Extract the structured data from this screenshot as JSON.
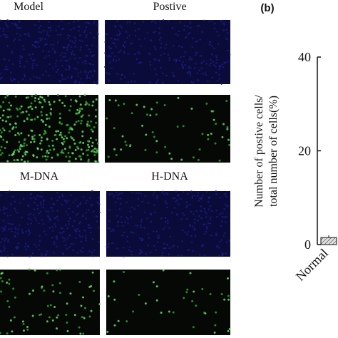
{
  "panel_a": {
    "labels": [
      "Model",
      "Postive",
      "M-DNA",
      "H-DNA"
    ]
  },
  "chart_data": {
    "type": "bar",
    "panel_label": "(b)",
    "y_label": [
      "Number of postive cells/",
      "total number of cells(%)"
    ],
    "categories": [
      "Normal"
    ],
    "values": [
      1.5
    ],
    "errors": [
      0.5
    ],
    "color": "#bbbbbb",
    "ylim": [
      0,
      40
    ],
    "yticks": [
      0,
      20,
      40
    ]
  }
}
